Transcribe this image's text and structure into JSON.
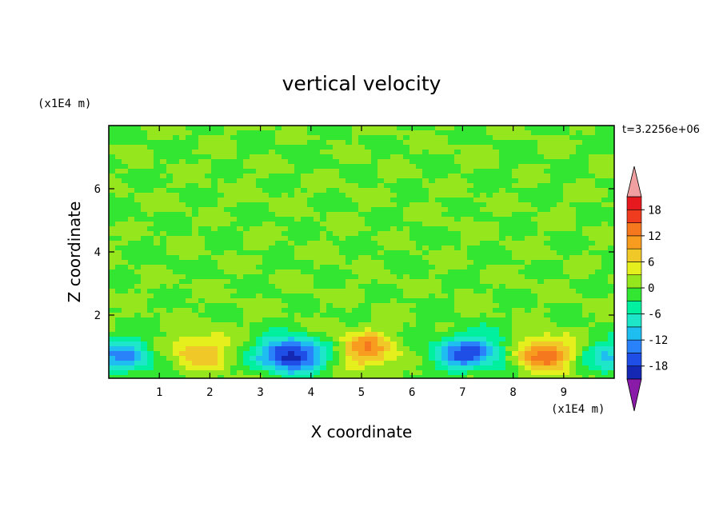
{
  "chart_data": {
    "type": "heatmap",
    "title": "vertical velocity",
    "xlabel": "X coordinate",
    "ylabel": "Z coordinate",
    "x_unit": "(x1E4 m)",
    "y_unit": "(x1E4 m)",
    "time_label": "t=3.2256e+06",
    "xlim": [
      0,
      10
    ],
    "ylim": [
      0,
      8
    ],
    "xticks": [
      "1",
      "2",
      "3",
      "4",
      "5",
      "6",
      "7",
      "8",
      "9"
    ],
    "yticks": [
      "2",
      "4",
      "6"
    ],
    "colorbar": {
      "min": -21,
      "max": 21,
      "step": 3,
      "tick_labels": [
        "18",
        "12",
        "6",
        "0",
        "-6",
        "-12",
        "-18"
      ],
      "tick_values": [
        18,
        12,
        6,
        0,
        -6,
        -12,
        -18
      ]
    },
    "features": [
      {
        "type": "updraft",
        "x": 1.8,
        "z": 0.85,
        "peak": 9
      },
      {
        "type": "updraft",
        "x": 5.1,
        "z": 0.9,
        "peak": 12
      },
      {
        "type": "updraft",
        "x": 8.6,
        "z": 0.75,
        "peak": 14
      },
      {
        "type": "downdraft",
        "x": 0.3,
        "z": 0.7,
        "peak": -13
      },
      {
        "type": "downdraft",
        "x": 3.4,
        "z": 0.75,
        "peak": -13
      },
      {
        "type": "downdraft",
        "x": 3.85,
        "z": 0.7,
        "peak": -11
      },
      {
        "type": "downdraft",
        "x": 6.9,
        "z": 0.8,
        "peak": -11
      },
      {
        "type": "downdraft",
        "x": 7.4,
        "z": 0.85,
        "peak": -9
      },
      {
        "type": "downdraft",
        "x": 9.95,
        "z": 0.7,
        "peak": -9
      }
    ]
  },
  "colors": {
    "palette": [
      "#8a1aa8",
      "#3a1096",
      "#1428b4",
      "#1e4ee6",
      "#2a82fa",
      "#1ebef0",
      "#1ee6c8",
      "#00f0a0",
      "#32e632",
      "#96e61e",
      "#e6ef1e",
      "#f0c828",
      "#f79c1e",
      "#f5781e",
      "#f03c1e",
      "#e6191e",
      "#c81414",
      "#f0a0a0"
    ]
  }
}
